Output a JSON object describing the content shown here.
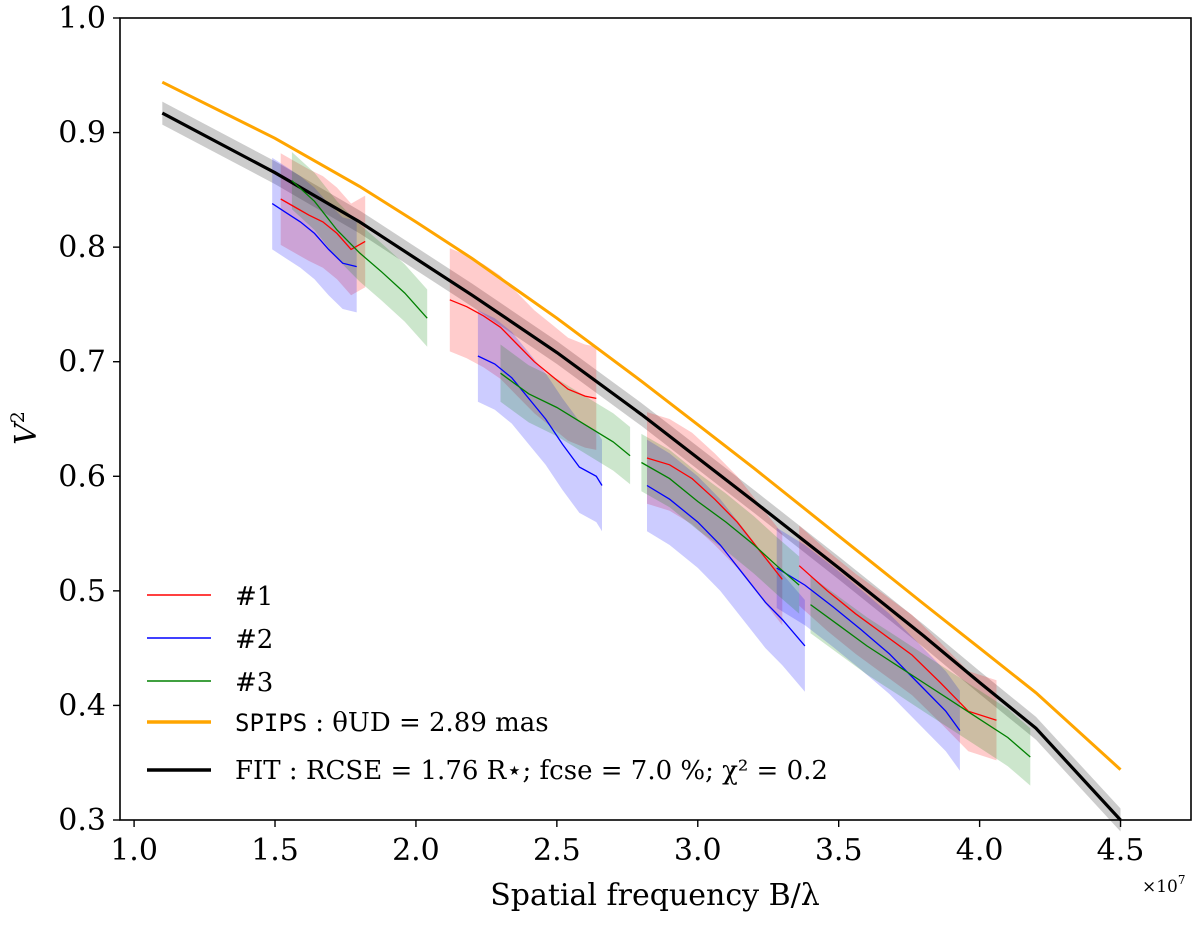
{
  "chart_data": {
    "type": "line",
    "xlabel": "Spatial frequency B/λ",
    "ylabel": "V",
    "ylabel_superscript": "2",
    "x_multiplier_base": "×10",
    "x_multiplier_exp": "7",
    "xlim": [
      0.95,
      4.75
    ],
    "ylim": [
      0.3,
      1.0
    ],
    "x_ticks": [
      1.0,
      1.5,
      2.0,
      2.5,
      3.0,
      3.5,
      4.0,
      4.5
    ],
    "x_tick_labels": [
      "1.0",
      "1.5",
      "2.0",
      "2.5",
      "3.0",
      "3.5",
      "4.0",
      "4.5"
    ],
    "y_ticks": [
      0.3,
      0.4,
      0.5,
      0.6,
      0.7,
      0.8,
      0.9,
      1.0
    ],
    "y_tick_labels": [
      "0.3",
      "0.4",
      "0.5",
      "0.6",
      "0.7",
      "0.8",
      "0.9",
      "1.0"
    ],
    "legend_position": "lower-left",
    "legend": {
      "s1": "#1",
      "s2": "#2",
      "s3": "#3",
      "spips_name": "SPIPS",
      "spips_rest": ": θUD = 2.89 mas",
      "fit": "FIT : RCSE = 1.76 R⋆; fcse = 7.0 %; χ² = 0.2"
    },
    "colors": {
      "s1": "#ff0000",
      "s2": "#0000ff",
      "s3": "#008000",
      "spips": "#ffa500",
      "fit": "#000000",
      "fit_band": "#bfbfbf"
    },
    "models": {
      "spips": {
        "x": [
          1.1,
          1.5,
          1.8,
          2.0,
          2.2,
          2.5,
          2.8,
          3.0,
          3.2,
          3.5,
          3.8,
          4.0,
          4.2,
          4.5
        ],
        "y": [
          0.944,
          0.895,
          0.853,
          0.822,
          0.79,
          0.738,
          0.683,
          0.645,
          0.607,
          0.548,
          0.489,
          0.45,
          0.411,
          0.344
        ]
      },
      "fit": {
        "x": [
          1.1,
          1.5,
          1.8,
          2.0,
          2.2,
          2.5,
          2.8,
          3.0,
          3.2,
          3.5,
          3.8,
          4.0,
          4.2,
          4.5
        ],
        "y": [
          0.917,
          0.865,
          0.822,
          0.79,
          0.758,
          0.708,
          0.654,
          0.616,
          0.578,
          0.52,
          0.461,
          0.42,
          0.38,
          0.3
        ],
        "band": 0.01
      }
    },
    "series": [
      {
        "name": "#1",
        "segments": [
          {
            "x": [
              1.52,
              1.57,
              1.62,
              1.67,
              1.72,
              1.77,
              1.82
            ],
            "y": [
              0.842,
              0.835,
              0.828,
              0.822,
              0.812,
              0.798,
              0.805
            ],
            "err": 0.04
          },
          {
            "x": [
              2.12,
              2.18,
              2.24,
              2.3,
              2.36,
              2.42,
              2.48,
              2.54,
              2.6,
              2.64
            ],
            "y": [
              0.754,
              0.748,
              0.74,
              0.73,
              0.715,
              0.7,
              0.688,
              0.676,
              0.67,
              0.668
            ],
            "err": 0.045
          },
          {
            "x": [
              2.82,
              2.9,
              2.98,
              3.06,
              3.14,
              3.22,
              3.3
            ],
            "y": [
              0.616,
              0.61,
              0.598,
              0.58,
              0.56,
              0.535,
              0.51
            ],
            "err": 0.04
          },
          {
            "x": [
              3.36,
              3.46,
              3.56,
              3.66,
              3.76,
              3.86,
              3.96,
              4.06
            ],
            "y": [
              0.522,
              0.5,
              0.48,
              0.462,
              0.444,
              0.42,
              0.395,
              0.387
            ],
            "err": 0.035
          }
        ]
      },
      {
        "name": "#2",
        "segments": [
          {
            "x": [
              1.49,
              1.54,
              1.59,
              1.64,
              1.69,
              1.74,
              1.79
            ],
            "y": [
              0.838,
              0.83,
              0.822,
              0.812,
              0.798,
              0.786,
              0.783
            ],
            "err": 0.04
          },
          {
            "x": [
              2.22,
              2.28,
              2.34,
              2.4,
              2.46,
              2.52,
              2.58,
              2.64,
              2.66
            ],
            "y": [
              0.705,
              0.698,
              0.686,
              0.668,
              0.65,
              0.628,
              0.608,
              0.6,
              0.592
            ],
            "err": 0.04
          },
          {
            "x": [
              2.82,
              2.9,
              3.0,
              3.08,
              3.16,
              3.24,
              3.3,
              3.38
            ],
            "y": [
              0.592,
              0.58,
              0.56,
              0.54,
              0.515,
              0.49,
              0.475,
              0.452
            ],
            "err": 0.04
          },
          {
            "x": [
              3.28,
              3.38,
              3.48,
              3.58,
              3.68,
              3.78,
              3.88,
              3.93
            ],
            "y": [
              0.52,
              0.505,
              0.486,
              0.466,
              0.445,
              0.42,
              0.395,
              0.378
            ],
            "err": 0.035
          }
        ]
      },
      {
        "name": "#3",
        "segments": [
          {
            "x": [
              1.56,
              1.64,
              1.72,
              1.8,
              1.88,
              1.96,
              2.04
            ],
            "y": [
              0.858,
              0.84,
              0.815,
              0.795,
              0.778,
              0.76,
              0.738
            ],
            "err": 0.025
          },
          {
            "x": [
              2.3,
              2.4,
              2.5,
              2.6,
              2.7,
              2.76
            ],
            "y": [
              0.69,
              0.672,
              0.66,
              0.645,
              0.63,
              0.618
            ],
            "err": 0.025
          },
          {
            "x": [
              2.8,
              2.9,
              3.0,
              3.1,
              3.2,
              3.28,
              3.36
            ],
            "y": [
              0.612,
              0.598,
              0.578,
              0.56,
              0.54,
              0.522,
              0.505
            ],
            "err": 0.025
          },
          {
            "x": [
              3.4,
              3.5,
              3.6,
              3.7,
              3.8,
              3.9,
              4.0,
              4.1,
              4.18
            ],
            "y": [
              0.488,
              0.47,
              0.452,
              0.436,
              0.42,
              0.404,
              0.388,
              0.372,
              0.355
            ],
            "err": 0.025
          }
        ]
      }
    ]
  }
}
